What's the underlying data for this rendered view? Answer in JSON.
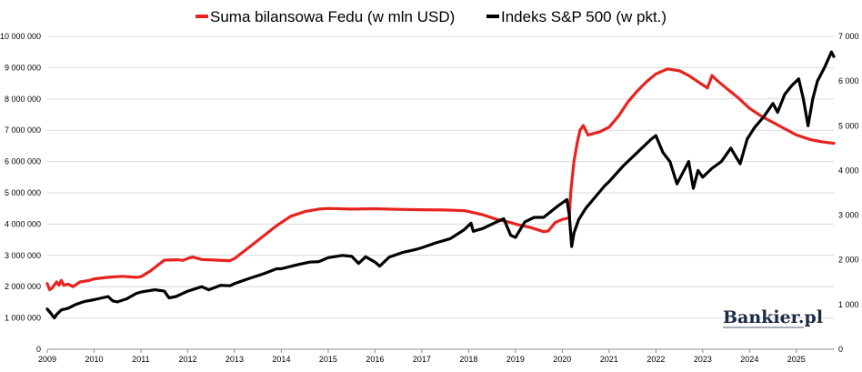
{
  "chart_data": {
    "type": "line",
    "title": "",
    "legend_position": "top",
    "grid": "horizontal",
    "xlabel": "",
    "ylabel_left": "",
    "ylabel_right": "",
    "x_ticks": [
      "2009",
      "2010",
      "2011",
      "2012",
      "2013",
      "2014",
      "2015",
      "2016",
      "2017",
      "2018",
      "2019",
      "2020",
      "2021",
      "2022",
      "2023",
      "2024",
      "2025"
    ],
    "x_range": [
      2009,
      2025.8
    ],
    "y_left": {
      "range": [
        0,
        10000000
      ],
      "ticks": [
        0,
        1000000,
        2000000,
        3000000,
        4000000,
        5000000,
        6000000,
        7000000,
        8000000,
        9000000,
        10000000
      ],
      "tick_labels": [
        "0",
        "1 000 000",
        "2 000 000",
        "3 000 000",
        "4 000 000",
        "5 000 000",
        "6 000 000",
        "7 000 000",
        "8 000 000",
        "9 000 000",
        "10 000 000"
      ]
    },
    "y_right": {
      "range": [
        0,
        7000
      ],
      "ticks": [
        0,
        1000,
        2000,
        3000,
        4000,
        5000,
        6000,
        7000
      ],
      "tick_labels": [
        "0",
        "1 000",
        "2 000",
        "3 000",
        "4 000",
        "5 000",
        "6 000",
        "7 000"
      ]
    },
    "series": [
      {
        "name": "Suma bilansowa Fedu (w mln USD)",
        "color": "#e8231e",
        "axis": "left",
        "points": [
          [
            2009.0,
            2100000
          ],
          [
            2009.05,
            1900000
          ],
          [
            2009.1,
            1950000
          ],
          [
            2009.2,
            2150000
          ],
          [
            2009.25,
            2050000
          ],
          [
            2009.3,
            2200000
          ],
          [
            2009.35,
            2050000
          ],
          [
            2009.45,
            2080000
          ],
          [
            2009.55,
            2000000
          ],
          [
            2009.7,
            2150000
          ],
          [
            2009.9,
            2200000
          ],
          [
            2010.0,
            2250000
          ],
          [
            2010.3,
            2300000
          ],
          [
            2010.6,
            2330000
          ],
          [
            2010.9,
            2300000
          ],
          [
            2011.0,
            2320000
          ],
          [
            2011.2,
            2500000
          ],
          [
            2011.5,
            2850000
          ],
          [
            2011.8,
            2860000
          ],
          [
            2011.9,
            2840000
          ],
          [
            2012.0,
            2900000
          ],
          [
            2012.1,
            2950000
          ],
          [
            2012.3,
            2870000
          ],
          [
            2012.6,
            2850000
          ],
          [
            2012.9,
            2830000
          ],
          [
            2013.0,
            2900000
          ],
          [
            2013.3,
            3250000
          ],
          [
            2013.6,
            3600000
          ],
          [
            2013.9,
            3950000
          ],
          [
            2014.2,
            4250000
          ],
          [
            2014.5,
            4400000
          ],
          [
            2014.8,
            4480000
          ],
          [
            2015.0,
            4500000
          ],
          [
            2015.5,
            4480000
          ],
          [
            2016.0,
            4490000
          ],
          [
            2016.5,
            4470000
          ],
          [
            2017.0,
            4460000
          ],
          [
            2017.5,
            4450000
          ],
          [
            2017.9,
            4430000
          ],
          [
            2018.0,
            4400000
          ],
          [
            2018.3,
            4300000
          ],
          [
            2018.6,
            4150000
          ],
          [
            2018.9,
            4050000
          ],
          [
            2019.0,
            4000000
          ],
          [
            2019.3,
            3900000
          ],
          [
            2019.6,
            3760000
          ],
          [
            2019.7,
            3780000
          ],
          [
            2019.85,
            4050000
          ],
          [
            2020.0,
            4150000
          ],
          [
            2020.15,
            4200000
          ],
          [
            2020.18,
            5000000
          ],
          [
            2020.25,
            6000000
          ],
          [
            2020.32,
            6600000
          ],
          [
            2020.38,
            7000000
          ],
          [
            2020.45,
            7150000
          ],
          [
            2020.55,
            6850000
          ],
          [
            2020.8,
            6950000
          ],
          [
            2021.0,
            7100000
          ],
          [
            2021.2,
            7450000
          ],
          [
            2021.4,
            7900000
          ],
          [
            2021.6,
            8250000
          ],
          [
            2021.8,
            8550000
          ],
          [
            2022.0,
            8800000
          ],
          [
            2022.25,
            8960000
          ],
          [
            2022.5,
            8900000
          ],
          [
            2022.7,
            8750000
          ],
          [
            2022.9,
            8550000
          ],
          [
            2023.05,
            8400000
          ],
          [
            2023.1,
            8350000
          ],
          [
            2023.2,
            8750000
          ],
          [
            2023.3,
            8600000
          ],
          [
            2023.5,
            8350000
          ],
          [
            2023.75,
            8050000
          ],
          [
            2024.0,
            7700000
          ],
          [
            2024.25,
            7450000
          ],
          [
            2024.5,
            7250000
          ],
          [
            2024.75,
            7050000
          ],
          [
            2025.0,
            6850000
          ],
          [
            2025.3,
            6700000
          ],
          [
            2025.55,
            6630000
          ],
          [
            2025.8,
            6580000
          ]
        ]
      },
      {
        "name": "Indeks S&P 500 (w pkt.)",
        "color": "#000000",
        "axis": "right",
        "points": [
          [
            2009.0,
            900
          ],
          [
            2009.08,
            800
          ],
          [
            2009.15,
            700
          ],
          [
            2009.2,
            780
          ],
          [
            2009.3,
            880
          ],
          [
            2009.45,
            920
          ],
          [
            2009.6,
            1000
          ],
          [
            2009.8,
            1070
          ],
          [
            2010.0,
            1110
          ],
          [
            2010.3,
            1180
          ],
          [
            2010.4,
            1080
          ],
          [
            2010.5,
            1060
          ],
          [
            2010.7,
            1130
          ],
          [
            2010.9,
            1250
          ],
          [
            2011.0,
            1280
          ],
          [
            2011.3,
            1330
          ],
          [
            2011.5,
            1300
          ],
          [
            2011.6,
            1150
          ],
          [
            2011.75,
            1180
          ],
          [
            2012.0,
            1300
          ],
          [
            2012.3,
            1400
          ],
          [
            2012.45,
            1330
          ],
          [
            2012.7,
            1430
          ],
          [
            2012.9,
            1420
          ],
          [
            2013.0,
            1470
          ],
          [
            2013.3,
            1580
          ],
          [
            2013.6,
            1680
          ],
          [
            2013.9,
            1800
          ],
          [
            2014.0,
            1800
          ],
          [
            2014.3,
            1880
          ],
          [
            2014.6,
            1950
          ],
          [
            2014.8,
            1960
          ],
          [
            2015.0,
            2050
          ],
          [
            2015.3,
            2100
          ],
          [
            2015.5,
            2080
          ],
          [
            2015.65,
            1920
          ],
          [
            2015.8,
            2070
          ],
          [
            2016.0,
            1950
          ],
          [
            2016.1,
            1860
          ],
          [
            2016.3,
            2060
          ],
          [
            2016.6,
            2170
          ],
          [
            2016.9,
            2240
          ],
          [
            2017.0,
            2270
          ],
          [
            2017.3,
            2380
          ],
          [
            2017.6,
            2470
          ],
          [
            2017.9,
            2670
          ],
          [
            2018.05,
            2820
          ],
          [
            2018.1,
            2640
          ],
          [
            2018.3,
            2700
          ],
          [
            2018.6,
            2850
          ],
          [
            2018.75,
            2920
          ],
          [
            2018.9,
            2550
          ],
          [
            2019.0,
            2500
          ],
          [
            2019.2,
            2850
          ],
          [
            2019.4,
            2950
          ],
          [
            2019.6,
            2950
          ],
          [
            2019.9,
            3200
          ],
          [
            2020.1,
            3350
          ],
          [
            2020.15,
            3000
          ],
          [
            2020.2,
            2300
          ],
          [
            2020.25,
            2600
          ],
          [
            2020.35,
            2900
          ],
          [
            2020.5,
            3150
          ],
          [
            2020.7,
            3400
          ],
          [
            2020.9,
            3650
          ],
          [
            2021.0,
            3750
          ],
          [
            2021.3,
            4100
          ],
          [
            2021.6,
            4400
          ],
          [
            2021.9,
            4700
          ],
          [
            2022.0,
            4780
          ],
          [
            2022.15,
            4400
          ],
          [
            2022.3,
            4200
          ],
          [
            2022.45,
            3700
          ],
          [
            2022.55,
            3900
          ],
          [
            2022.7,
            4200
          ],
          [
            2022.8,
            3600
          ],
          [
            2022.9,
            4000
          ],
          [
            2023.0,
            3850
          ],
          [
            2023.2,
            4050
          ],
          [
            2023.4,
            4200
          ],
          [
            2023.6,
            4500
          ],
          [
            2023.8,
            4150
          ],
          [
            2023.95,
            4700
          ],
          [
            2024.1,
            4950
          ],
          [
            2024.3,
            5200
          ],
          [
            2024.5,
            5500
          ],
          [
            2024.6,
            5300
          ],
          [
            2024.75,
            5700
          ],
          [
            2024.9,
            5900
          ],
          [
            2025.05,
            6050
          ],
          [
            2025.15,
            5600
          ],
          [
            2025.25,
            5000
          ],
          [
            2025.35,
            5600
          ],
          [
            2025.45,
            6000
          ],
          [
            2025.6,
            6300
          ],
          [
            2025.75,
            6650
          ],
          [
            2025.8,
            6550
          ]
        ]
      }
    ]
  },
  "brand": {
    "logo_text": "Bankier.pl"
  }
}
